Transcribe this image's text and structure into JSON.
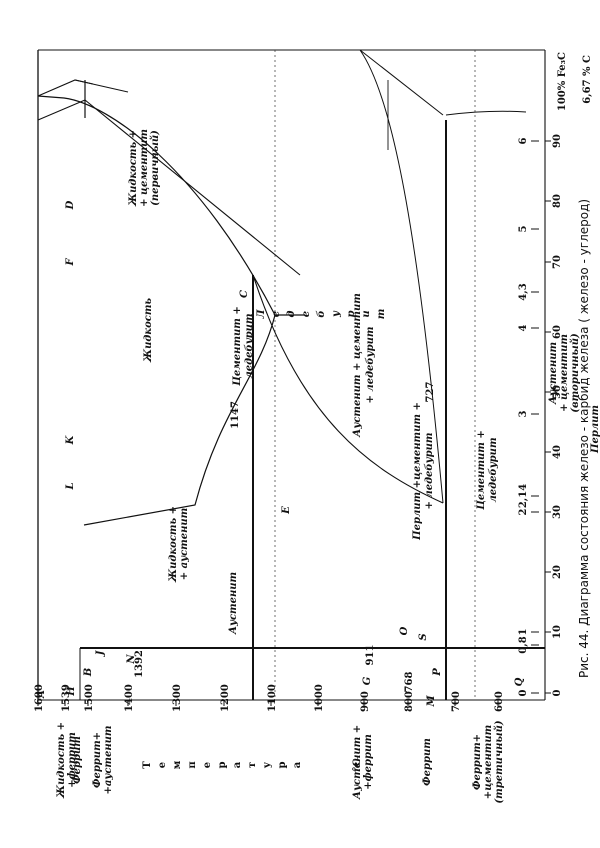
{
  "caption": "Рис. 44. Диаграмма состояния железо - карбид железа ( железо - углерод)",
  "x_axis_fe3c": {
    "ticks": [
      "0",
      "10",
      "20",
      "30",
      "40",
      "50",
      "60",
      "70",
      "80",
      "90"
    ],
    "end_label": "100% Fe₃C"
  },
  "x_axis_c": {
    "ticks": [
      "0",
      "0,8",
      "1",
      "2",
      "2,14",
      "3",
      "4",
      "4,3",
      "5",
      "6"
    ],
    "end_label": "6,67 % C"
  },
  "temp_axis": {
    "ticks": [
      "1600",
      "1539",
      "1500",
      "1400",
      "1300",
      "1200",
      "1100",
      "1000",
      "900",
      "800",
      "700",
      "600"
    ],
    "title_letters": [
      "Т",
      "е",
      "м",
      "п",
      "е",
      "р",
      "а",
      "т",
      "у",
      "р",
      "а"
    ],
    "unit": "°C"
  },
  "points": {
    "A": "A",
    "B": "B",
    "H": "H",
    "J": "J",
    "N": "N",
    "D": "D",
    "F": "F",
    "C": "C",
    "E": "E",
    "G": "G",
    "O": "O",
    "S": "S",
    "P": "P",
    "Q": "Q",
    "K": "K",
    "L": "L",
    "M": "M"
  },
  "point_values": {
    "N": "1392",
    "G": "911",
    "O": "768"
  },
  "line_values": {
    "eutectic": "1147",
    "eutectoid": "727"
  },
  "regions": {
    "liquid": "Жидкость",
    "liquid_cementite": [
      "Жидкость +",
      "+ цементит",
      "(первичный)"
    ],
    "liquid_austenite": [
      "Жидкость +",
      "+ аустенит"
    ],
    "austenite": "Аустенит",
    "austenite_cementite_ledeburite": [
      "Аустенит + цементит",
      "+  ледебурит"
    ],
    "cementite_ledeburite_1": [
      "Цементит +",
      "ледебурит"
    ],
    "cementite_ledeburite_2": [
      "Цементит +",
      "ледебурит"
    ],
    "ledeburite_vertical": [
      "Л",
      "е",
      "д",
      "е",
      "б",
      "у",
      "р",
      "и",
      "т"
    ],
    "austenite_secondary_cementite": [
      "Аустенит",
      "+ цементит",
      "(вторичный)"
    ],
    "pearlite": "Перлит",
    "cementite_pearlite": [
      "Цементит +",
      "перлит"
    ],
    "pearlite_cementite_ledeburite": [
      "Перлит +цементит +",
      "+ ледебурит"
    ],
    "ferrite_pearlite": [
      "Феррит",
      "+ перлит"
    ],
    "austenite_ferrite_bottom": [
      "Аустенит +",
      "+феррит"
    ],
    "liquid_ferrite": [
      "Жидкость +",
      "+феррит"
    ],
    "ferrite_top": "Феррит",
    "ferrite_austenite": [
      "Феррит+",
      "+аустенит"
    ],
    "ferrite_bottom": "Феррит",
    "ferrite_tertiary_cementite": [
      "Феррит+",
      "+цементит",
      "(третичный)"
    ]
  }
}
